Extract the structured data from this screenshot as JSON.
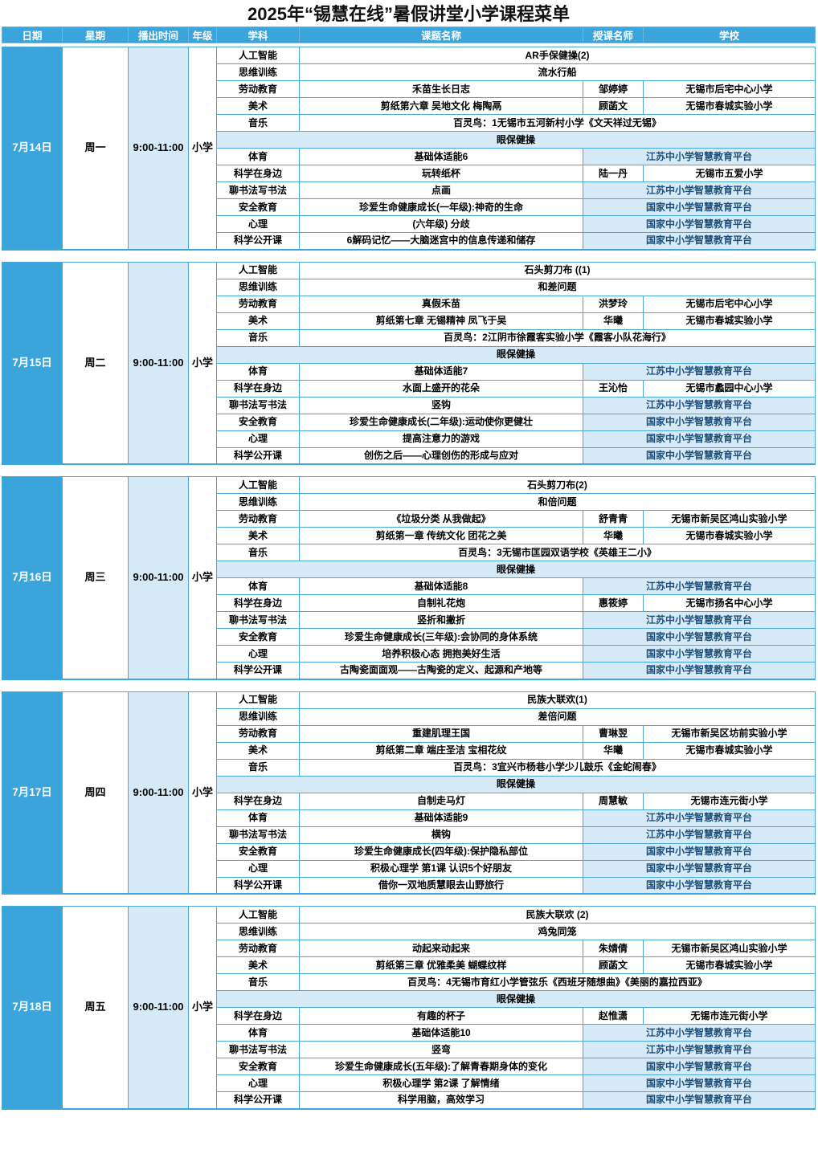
{
  "title": "2025年“锡慧在线”暑假讲堂小学课程菜单",
  "colors": {
    "header_blue": "#3ba4da",
    "light_blue": "#d5e9f6",
    "platform_text_navy": "#1f4e79",
    "border_blue": "#4aa7d8"
  },
  "header": {
    "columns": [
      "日期",
      "星期",
      "播出时间",
      "年级",
      "学科",
      "课题名称",
      "授课名师",
      "学校"
    ]
  },
  "blocks": [
    {
      "date": "7月14日",
      "weekday": "周一",
      "time": "9:00-11:00",
      "grade": "小学",
      "rows": [
        {
          "type": "full",
          "subject": "人工智能",
          "topic": "AR手保健操(2)"
        },
        {
          "type": "full",
          "subject": "思维训练",
          "topic": "流水行船"
        },
        {
          "type": "normal",
          "subject": "劳动教育",
          "topic": "禾苗生长日志",
          "teacher": "邹婷婷",
          "school": "无锡市后宅中心小学"
        },
        {
          "type": "normal",
          "subject": "美术",
          "topic": "剪纸第六章 吴地文化 梅陶鬲",
          "teacher": "顾菡文",
          "school": "无锡市春城实验小学"
        },
        {
          "type": "full",
          "subject": "音乐",
          "topic": "百灵鸟：1无锡市五河新村小学《文天祥过无锡》"
        },
        {
          "type": "banner",
          "topic": "眼保健操"
        },
        {
          "type": "platform",
          "subject": "体育",
          "topic": "基础体适能6",
          "platform": "江苏中小学智慧教育平台"
        },
        {
          "type": "normal",
          "subject": "科学在身边",
          "topic": "玩转纸杯",
          "teacher": "陆一丹",
          "school": "无锡市五爱小学"
        },
        {
          "type": "platform",
          "subject": "聊书法写书法",
          "topic": "点画",
          "platform": "江苏中小学智慧教育平台"
        },
        {
          "type": "platform",
          "subject": "安全教育",
          "topic": "珍爱生命健康成长(一年级):神奇的生命",
          "platform": "国家中小学智慧教育平台"
        },
        {
          "type": "platform",
          "subject": "心理",
          "topic": "(六年级) 分歧",
          "platform": "国家中小学智慧教育平台"
        },
        {
          "type": "platform",
          "subject": "科学公开课",
          "topic": "6解码记忆——大脑迷宫中的信息传递和储存",
          "platform": "国家中小学智慧教育平台"
        }
      ]
    },
    {
      "date": "7月15日",
      "weekday": "周二",
      "time": "9:00-11:00",
      "grade": "小学",
      "rows": [
        {
          "type": "full",
          "subject": "人工智能",
          "topic": "石头剪刀布 ((1)"
        },
        {
          "type": "full",
          "subject": "思维训练",
          "topic": "和差问题"
        },
        {
          "type": "normal",
          "subject": "劳动教育",
          "topic": "真假禾苗",
          "teacher": "洪梦玲",
          "school": "无锡市后宅中心小学"
        },
        {
          "type": "normal",
          "subject": "美术",
          "topic": "剪纸第七章 无锡精神 凤飞于吴",
          "teacher": "华曦",
          "school": "无锡市春城实验小学"
        },
        {
          "type": "full",
          "subject": "音乐",
          "topic": "百灵鸟：2江阴市徐霞客实验小学《霞客小队花海行》"
        },
        {
          "type": "banner",
          "topic": "眼保健操"
        },
        {
          "type": "platform",
          "subject": "体育",
          "topic": "基础体适能7",
          "platform": "江苏中小学智慧教育平台"
        },
        {
          "type": "normal",
          "subject": "科学在身边",
          "topic": "水面上盛开的花朵",
          "teacher": "王沁怡",
          "school": "无锡市蠡园中心小学"
        },
        {
          "type": "platform",
          "subject": "聊书法写书法",
          "topic": "竖钩",
          "platform": "江苏中小学智慧教育平台"
        },
        {
          "type": "platform",
          "subject": "安全教育",
          "topic": "珍爱生命健康成长(二年级):运动使你更健壮",
          "platform": "国家中小学智慧教育平台"
        },
        {
          "type": "platform",
          "subject": "心理",
          "topic": "提高注意力的游戏",
          "platform": "国家中小学智慧教育平台"
        },
        {
          "type": "platform",
          "subject": "科学公开课",
          "topic": "创伤之后——心理创伤的形成与应对",
          "platform": "国家中小学智慧教育平台"
        }
      ]
    },
    {
      "date": "7月16日",
      "weekday": "周三",
      "time": "9:00-11:00",
      "grade": "小学",
      "rows": [
        {
          "type": "full",
          "subject": "人工智能",
          "topic": "石头剪刀布(2)"
        },
        {
          "type": "full",
          "subject": "思维训练",
          "topic": "和倍问题"
        },
        {
          "type": "normal",
          "subject": "劳动教育",
          "topic": "《垃圾分类 从我做起》",
          "teacher": "舒青青",
          "school": "无锡市新吴区鸿山实验小学"
        },
        {
          "type": "normal",
          "subject": "美术",
          "topic": "剪纸第一章 传统文化 团花之美",
          "teacher": "华曦",
          "school": "无锡市春城实验小学"
        },
        {
          "type": "full",
          "subject": "音乐",
          "topic": "百灵鸟：3无锡市匡园双语学校《英雄王二小》"
        },
        {
          "type": "banner",
          "topic": "眼保健操"
        },
        {
          "type": "platform",
          "subject": "体育",
          "topic": "基础体适能8",
          "platform": "江苏中小学智慧教育平台"
        },
        {
          "type": "normal",
          "subject": "科学在身边",
          "topic": "自制礼花炮",
          "teacher": "惠筱婷",
          "school": "无锡市扬名中心小学"
        },
        {
          "type": "platform",
          "subject": "聊书法写书法",
          "topic": "竖折和撇折",
          "platform": "江苏中小学智慧教育平台"
        },
        {
          "type": "platform",
          "subject": "安全教育",
          "topic": "珍爱生命健康成长(三年级):会协同的身体系统",
          "platform": "国家中小学智慧教育平台"
        },
        {
          "type": "platform",
          "subject": "心理",
          "topic": "培养积极心态 拥抱美好生活",
          "platform": "国家中小学智慧教育平台"
        },
        {
          "type": "platform",
          "subject": "科学公开课",
          "topic": "古陶瓷面面观——古陶瓷的定义、起源和产地等",
          "platform": "国家中小学智慧教育平台"
        }
      ]
    },
    {
      "date": "7月17日",
      "weekday": "周四",
      "time": "9:00-11:00",
      "grade": "小学",
      "rows": [
        {
          "type": "full",
          "subject": "人工智能",
          "topic": "民族大联欢(1)"
        },
        {
          "type": "full",
          "subject": "思维训练",
          "topic": "差倍问题"
        },
        {
          "type": "normal",
          "subject": "劳动教育",
          "topic": "重建肌理王国",
          "teacher": "曹琳翌",
          "school": "无锡市新吴区坊前实验小学"
        },
        {
          "type": "normal",
          "subject": "美术",
          "topic": "剪纸第二章 端庄圣洁 宝相花纹",
          "teacher": "华曦",
          "school": "无锡市春城实验小学"
        },
        {
          "type": "full",
          "subject": "音乐",
          "topic": "百灵鸟：3宜兴市杨巷小学少儿鼓乐《金蛇闹春》"
        },
        {
          "type": "banner",
          "topic": "眼保健操"
        },
        {
          "type": "normal",
          "subject": "科学在身边",
          "topic": "自制走马灯",
          "teacher": "周慧敏",
          "school": "无锡市连元街小学"
        },
        {
          "type": "platform",
          "subject": "体育",
          "topic": "基础体适能9",
          "platform": "江苏中小学智慧教育平台"
        },
        {
          "type": "platform",
          "subject": "聊书法写书法",
          "topic": "横钩",
          "platform": "江苏中小学智慧教育平台"
        },
        {
          "type": "platform",
          "subject": "安全教育",
          "topic": "珍爱生命健康成长(四年级):保护隐私部位",
          "platform": "国家中小学智慧教育平台"
        },
        {
          "type": "platform",
          "subject": "心理",
          "topic": "积极心理学 第1课 认识5个好朋友",
          "platform": "国家中小学智慧教育平台"
        },
        {
          "type": "platform",
          "subject": "科学公开课",
          "topic": "借你一双地质慧眼去山野旅行",
          "platform": "国家中小学智慧教育平台"
        }
      ]
    },
    {
      "date": "7月18日",
      "weekday": "周五",
      "time": "9:00-11:00",
      "grade": "小学",
      "rows": [
        {
          "type": "full",
          "subject": "人工智能",
          "topic": "民族大联欢 (2)"
        },
        {
          "type": "full",
          "subject": "思维训练",
          "topic": "鸡兔同笼"
        },
        {
          "type": "normal",
          "subject": "劳动教育",
          "topic": "动起来动起来",
          "teacher": "朱婧倩",
          "school": "无锡市新吴区鸿山实验小学"
        },
        {
          "type": "normal",
          "subject": "美术",
          "topic": "剪纸第三章 优雅柔美 蝴蝶纹样",
          "teacher": "顾菡文",
          "school": "无锡市春城实验小学"
        },
        {
          "type": "full",
          "subject": "音乐",
          "topic": "百灵鸟：4无锡市育红小学管弦乐《西班牙随想曲》《美丽的嘉拉西亚》"
        },
        {
          "type": "banner",
          "topic": "眼保健操"
        },
        {
          "type": "normal",
          "subject": "科学在身边",
          "topic": "有趣的杯子",
          "teacher": "赵惟潇",
          "school": "无锡市连元街小学"
        },
        {
          "type": "platform",
          "subject": "体育",
          "topic": "基础体适能10",
          "platform": "江苏中小学智慧教育平台"
        },
        {
          "type": "platform",
          "subject": "聊书法写书法",
          "topic": "竖弯",
          "platform": "江苏中小学智慧教育平台"
        },
        {
          "type": "platform",
          "subject": "安全教育",
          "topic": "珍爱生命健康成长(五年级):了解青春期身体的变化",
          "platform": "国家中小学智慧教育平台"
        },
        {
          "type": "platform",
          "subject": "心理",
          "topic": "积极心理学 第2课 了解情绪",
          "platform": "国家中小学智慧教育平台"
        },
        {
          "type": "platform",
          "subject": "科学公开课",
          "topic": "科学用脑，高效学习",
          "platform": "国家中小学智慧教育平台"
        }
      ]
    }
  ]
}
